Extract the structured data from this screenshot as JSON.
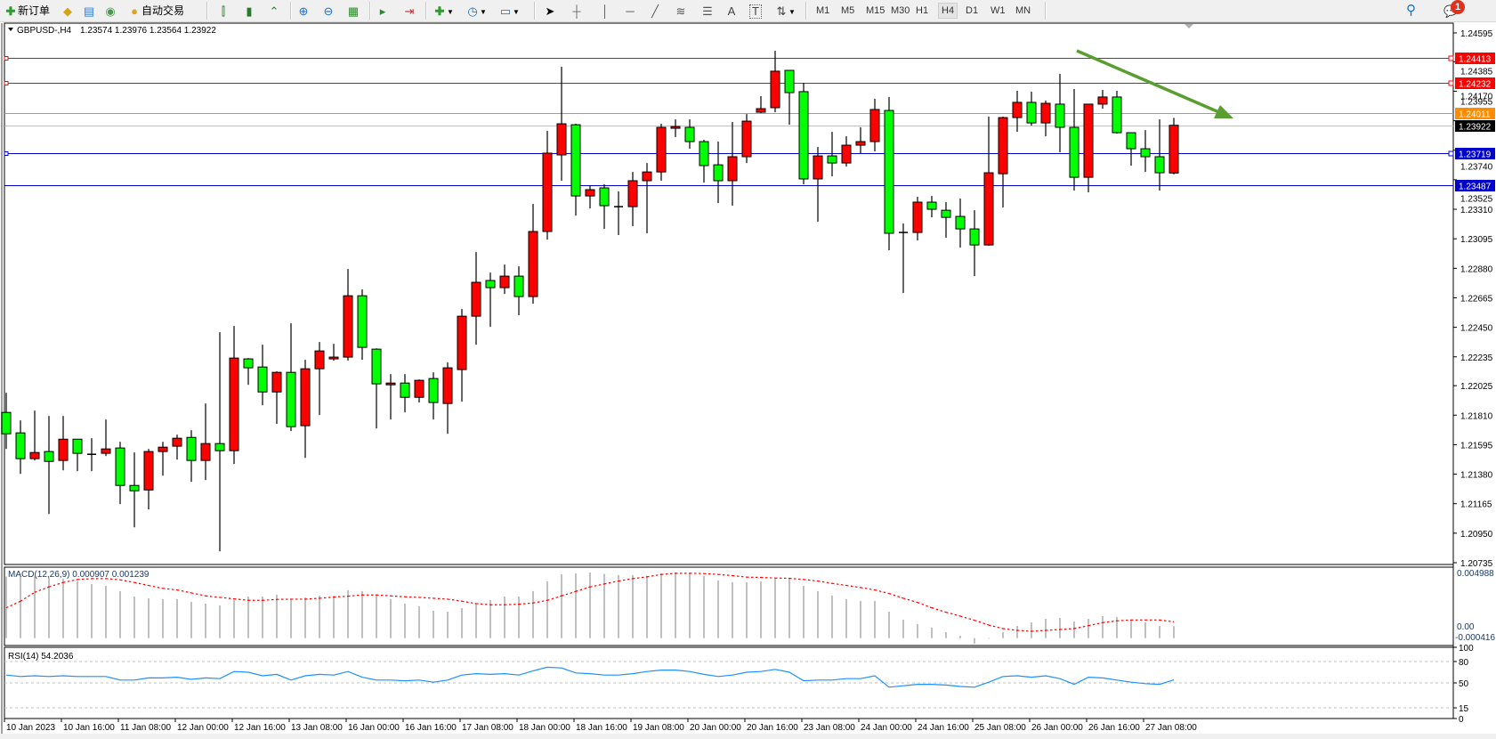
{
  "toolbar": {
    "new_order": "新订单",
    "auto_trading": "自动交易",
    "icons": [
      "new-order-icon",
      "market-watch-icon",
      "navigator-icon",
      "signals-icon",
      "auto-trading-icon",
      "bar-chart-icon",
      "candlestick-icon",
      "line-chart-icon",
      "zoom-in-icon",
      "zoom-out-icon",
      "tile-windows-icon",
      "autoscroll-icon",
      "chart-shift-icon",
      "new-chart-icon",
      "periods-clock-icon",
      "templates-icon",
      "cursor-icon",
      "crosshair-icon",
      "vertical-line-icon",
      "horizontal-line-icon",
      "trendline-icon",
      "fibonacci-icon",
      "equidistant-channel-icon",
      "text-icon",
      "text-label-icon",
      "arrows-icon",
      "search-icon",
      "notifications-icon"
    ],
    "text_tool": "A",
    "label_tool": "T",
    "timeframes": [
      "M1",
      "M5",
      "M15",
      "M30",
      "H1",
      "H4",
      "D1",
      "W1",
      "MN"
    ],
    "active_timeframe": "H4",
    "notification_count": "1"
  },
  "chart": {
    "symbol": "GBPUSD-,H4",
    "ohlc": "1.23574 1.23976 1.23564 1.23922",
    "bull_color": "#ff0000",
    "bear_color": "#00ff00",
    "price_levels": [
      {
        "value": 1.24413,
        "label": "1.24413",
        "color": "#ff0000",
        "marker": true
      },
      {
        "value": 1.24232,
        "label": "1.24232",
        "color": "#ff0000",
        "marker": true
      },
      {
        "value": 1.24011,
        "label": "1.24011",
        "color": "#ff8c00",
        "marker": false
      },
      {
        "value": 1.23922,
        "label": "1.23922",
        "color": "#c0c0c0",
        "box_color": "#000000",
        "marker": false
      },
      {
        "value": 1.23719,
        "label": "1.23719",
        "color": "#0000cc",
        "marker": true
      },
      {
        "value": 1.23487,
        "label": "1.23487",
        "color": "#0000cc",
        "marker": false
      }
    ],
    "trend_arrow_color": "#5a9e2f"
  },
  "chart_data": [
    {
      "type": "candlestick",
      "title": "GBPUSD-,H4",
      "ylim": [
        1.20722,
        1.24666
      ],
      "yticks": [
        "1.24595",
        "1.24385",
        "1.24170",
        "1.23955",
        "1.23740",
        "1.23525",
        "1.23310",
        "1.23095",
        "1.22880",
        "1.22665",
        "1.22450",
        "1.22235",
        "1.22025",
        "1.21810",
        "1.21595",
        "1.21380",
        "1.21165",
        "1.20950",
        "1.20735"
      ],
      "xtick_labels": [
        "10 Jan 2023",
        "10 Jan 16:00",
        "11 Jan 08:00",
        "12 Jan 00:00",
        "12 Jan 16:00",
        "13 Jan 08:00",
        "16 Jan 00:00",
        "16 Jan 16:00",
        "17 Jan 08:00",
        "18 Jan 00:00",
        "18 Jan 16:00",
        "19 Jan 08:00",
        "20 Jan 00:00",
        "20 Jan 16:00",
        "23 Jan 08:00",
        "24 Jan 00:00",
        "24 Jan 16:00",
        "25 Jan 08:00",
        "26 Jan 00:00",
        "26 Jan 16:00",
        "27 Jan 08:00"
      ],
      "xtick_every_bars": 4,
      "ohlc_fields": [
        "open",
        "high",
        "low",
        "close"
      ],
      "candles": [
        [
          1.2183,
          1.21973,
          1.21564,
          1.21674
        ],
        [
          1.21681,
          1.21772,
          1.21382,
          1.21493
        ],
        [
          1.21493,
          1.21843,
          1.2148,
          1.21538
        ],
        [
          1.21545,
          1.21804,
          1.2109,
          1.21473
        ],
        [
          1.2148,
          1.21804,
          1.21408,
          1.21635
        ],
        [
          1.21635,
          1.21635,
          1.21402,
          1.21532
        ],
        [
          1.21525,
          1.21642,
          1.21402,
          1.21525
        ],
        [
          1.21532,
          1.21778,
          1.21512,
          1.21564
        ],
        [
          1.21571,
          1.21616,
          1.21162,
          1.21298
        ],
        [
          1.21298,
          1.21538,
          1.20993,
          1.21259
        ],
        [
          1.21265,
          1.21564,
          1.21123,
          1.21545
        ],
        [
          1.21545,
          1.21616,
          1.21369,
          1.21577
        ],
        [
          1.21584,
          1.21668,
          1.21486,
          1.21642
        ],
        [
          1.21648,
          1.217,
          1.21324,
          1.2148
        ],
        [
          1.2148,
          1.21895,
          1.21337,
          1.21603
        ],
        [
          1.21603,
          1.22414,
          1.20818,
          1.21551
        ],
        [
          1.21551,
          1.2246,
          1.21454,
          1.22226
        ],
        [
          1.2222,
          1.22226,
          1.22031,
          1.22155
        ],
        [
          1.22161,
          1.22323,
          1.21882,
          1.21979
        ],
        [
          1.21979,
          1.22129,
          1.21746,
          1.22122
        ],
        [
          1.22122,
          1.22479,
          1.21694,
          1.21726
        ],
        [
          1.21733,
          1.22213,
          1.21499,
          1.22148
        ],
        [
          1.22148,
          1.22343,
          1.21811,
          1.22278
        ],
        [
          1.2222,
          1.2233,
          1.22207,
          1.22233
        ],
        [
          1.22233,
          1.22875,
          1.22207,
          1.2268
        ],
        [
          1.2268,
          1.22726,
          1.22213,
          1.22304
        ],
        [
          1.22291,
          1.22297,
          1.21713,
          1.22038
        ],
        [
          1.22031,
          1.22109,
          1.21778,
          1.22044
        ],
        [
          1.22044,
          1.22109,
          1.2183,
          1.2194
        ],
        [
          1.2194,
          1.2207,
          1.21902,
          1.22064
        ],
        [
          1.22077,
          1.22122,
          1.21778,
          1.21902
        ],
        [
          1.21895,
          1.22194,
          1.21674,
          1.22155
        ],
        [
          1.22142,
          1.22583,
          1.21908,
          1.22531
        ],
        [
          1.22531,
          1.22998,
          1.22323,
          1.22778
        ],
        [
          1.22791,
          1.22849,
          1.22453,
          1.22739
        ],
        [
          1.22739,
          1.22907,
          1.22693,
          1.22823
        ],
        [
          1.22823,
          1.22894,
          1.22538,
          1.22674
        ],
        [
          1.22674,
          1.23349,
          1.22622,
          1.23148
        ],
        [
          1.23148,
          1.23881,
          1.23089,
          1.23719
        ],
        [
          1.23706,
          1.24348,
          1.23518,
          1.23933
        ],
        [
          1.23926,
          1.23933,
          1.23264,
          1.23407
        ],
        [
          1.23407,
          1.23485,
          1.23316,
          1.23453
        ],
        [
          1.23466,
          1.23492,
          1.23167,
          1.23336
        ],
        [
          1.23329,
          1.2344,
          1.23122,
          1.23329
        ],
        [
          1.23329,
          1.23582,
          1.23187,
          1.23518
        ],
        [
          1.23518,
          1.23647,
          1.23135,
          1.23582
        ],
        [
          1.23582,
          1.23933,
          1.23518,
          1.23907
        ],
        [
          1.239,
          1.23965,
          1.23836,
          1.23913
        ],
        [
          1.23907,
          1.23965,
          1.23751,
          1.23803
        ],
        [
          1.23803,
          1.23816,
          1.23505,
          1.23628
        ],
        [
          1.23634,
          1.23803,
          1.23355,
          1.23518
        ],
        [
          1.23518,
          1.23946,
          1.23336,
          1.23693
        ],
        [
          1.23693,
          1.24004,
          1.23647,
          1.23952
        ],
        [
          1.24017,
          1.24134,
          1.24011,
          1.24043
        ],
        [
          1.2405,
          1.24465,
          1.24017,
          1.24316
        ],
        [
          1.24322,
          1.24322,
          1.23926,
          1.2416
        ],
        [
          1.24167,
          1.24231,
          1.23492,
          1.23531
        ],
        [
          1.23531,
          1.23764,
          1.23219,
          1.23699
        ],
        [
          1.23699,
          1.23874,
          1.2355,
          1.23647
        ],
        [
          1.23647,
          1.23842,
          1.23621,
          1.23777
        ],
        [
          1.23777,
          1.23907,
          1.23719,
          1.23803
        ],
        [
          1.23803,
          1.24115,
          1.23732,
          1.24037
        ],
        [
          1.2403,
          1.24128,
          1.23011,
          1.23135
        ],
        [
          1.23141,
          1.23206,
          1.227,
          1.23141
        ],
        [
          1.23141,
          1.23401,
          1.23083,
          1.23362
        ],
        [
          1.23362,
          1.23407,
          1.23251,
          1.2331
        ],
        [
          1.23303,
          1.23362,
          1.23102,
          1.23251
        ],
        [
          1.23258,
          1.23388,
          1.23031,
          1.23167
        ],
        [
          1.23167,
          1.23303,
          1.22823,
          1.2305
        ],
        [
          1.2305,
          1.23985,
          1.23044,
          1.23576
        ],
        [
          1.23569,
          1.23985,
          1.23323,
          1.23978
        ],
        [
          1.23978,
          1.24173,
          1.23874,
          1.24089
        ],
        [
          1.24089,
          1.24167,
          1.2392,
          1.23939
        ],
        [
          1.23939,
          1.24102,
          1.23842,
          1.24082
        ],
        [
          1.24076,
          1.24296,
          1.23725,
          1.23907
        ],
        [
          1.23907,
          1.24186,
          1.23446,
          1.23543
        ],
        [
          1.23543,
          1.24076,
          1.23433,
          1.24076
        ],
        [
          1.24076,
          1.2418,
          1.24043,
          1.24128
        ],
        [
          1.24128,
          1.24173,
          1.23861,
          1.23868
        ],
        [
          1.23868,
          1.23868,
          1.23628,
          1.23751
        ],
        [
          1.23751,
          1.23887,
          1.23582,
          1.23693
        ],
        [
          1.23693,
          1.23965,
          1.23446,
          1.23576
        ],
        [
          1.23574,
          1.23976,
          1.23564,
          1.23922
        ]
      ]
    },
    {
      "type": "bar",
      "title": "MACD(12,26,9) 0.000907 0.001239",
      "ylim": [
        -0.00056,
        0.00539
      ],
      "max_label": "0.004988",
      "zero_label": "0.00",
      "min_label": "-0.000416",
      "histogram_color": "#c0c0c0",
      "signal_color": "#ff0000",
      "macd": [
        0.004678,
        0.004678,
        0.004678,
        0.00461,
        0.00452,
        0.004339,
        0.004113,
        0.003978,
        0.003571,
        0.003164,
        0.003028,
        0.002961,
        0.002961,
        0.002757,
        0.002622,
        0.002486,
        0.002893,
        0.003164,
        0.003164,
        0.0033,
        0.002961,
        0.003096,
        0.003232,
        0.003232,
        0.003639,
        0.003571,
        0.003232,
        0.002961,
        0.002622,
        0.002418,
        0.002079,
        0.002011,
        0.002283,
        0.002622,
        0.002893,
        0.003164,
        0.003164,
        0.003571,
        0.004317,
        0.00485,
        0.00492,
        0.004988,
        0.00488,
        0.004791,
        0.004791,
        0.004723,
        0.004927,
        0.004988,
        0.00495,
        0.004723,
        0.004384,
        0.004249,
        0.004249,
        0.004317,
        0.00452,
        0.00452,
        0.003978,
        0.003571,
        0.003232,
        0.002961,
        0.002825,
        0.002825,
        0.002011,
        0.001401,
        0.001062,
        0.000791,
        0.000452,
        0.000181,
        -0.000416,
        -4.5e-05,
        0.000452,
        0.000927,
        0.001198,
        0.001469,
        0.001537,
        0.001266,
        0.001469,
        0.001672,
        0.001605,
        0.001401,
        0.001198,
        0.000927,
        0.000907
      ],
      "signal": [
        0.002305,
        0.002802,
        0.00348,
        0.003887,
        0.004226,
        0.004452,
        0.00452,
        0.00452,
        0.00443,
        0.004226,
        0.004,
        0.003774,
        0.003661,
        0.003435,
        0.003209,
        0.003096,
        0.002983,
        0.00287,
        0.00287,
        0.002938,
        0.002961,
        0.002961,
        0.003028,
        0.003119,
        0.003187,
        0.003277,
        0.003277,
        0.003209,
        0.003141,
        0.003096,
        0.003028,
        0.002961,
        0.002802,
        0.002622,
        0.002531,
        0.002531,
        0.002576,
        0.002667,
        0.00287,
        0.003209,
        0.003548,
        0.003887,
        0.004113,
        0.004339,
        0.00452,
        0.004656,
        0.004836,
        0.004927,
        0.004927,
        0.004904,
        0.004836,
        0.004746,
        0.004633,
        0.00461,
        0.004565,
        0.004543,
        0.004452,
        0.004339,
        0.004158,
        0.004,
        0.003842,
        0.003661,
        0.00339,
        0.003028,
        0.002712,
        0.002305,
        0.001966,
        0.001672,
        0.001356,
        0.000994,
        0.000723,
        0.000588,
        0.00052,
        0.000588,
        0.000655,
        0.000723,
        0.000949,
        0.001175,
        0.001311,
        0.001379,
        0.001379,
        0.001379,
        0.001239
      ]
    },
    {
      "type": "line",
      "title": "RSI(14) 54.2036",
      "ylim": [
        0,
        100
      ],
      "yticks": [
        "100",
        "80",
        "50",
        "15",
        "0"
      ],
      "levels": [
        80,
        50,
        15
      ],
      "color": "#1e90ff",
      "values": [
        61,
        59,
        60,
        59,
        60,
        59,
        59,
        59,
        54,
        54,
        57,
        57,
        58,
        55,
        57,
        56,
        66,
        65,
        60,
        62,
        54,
        60,
        62,
        61,
        66,
        58,
        54,
        54,
        53,
        54,
        51,
        54,
        61,
        63,
        62,
        63,
        61,
        67,
        72,
        71,
        64,
        63,
        61,
        61,
        63,
        66,
        68,
        68,
        66,
        62,
        59,
        61,
        65,
        66,
        69,
        65,
        53,
        54,
        54,
        56,
        56,
        60,
        44,
        46,
        48,
        48,
        47,
        45,
        44,
        51,
        59,
        60,
        58,
        60,
        56,
        48,
        58,
        57,
        54,
        51,
        49,
        48,
        54.2
      ]
    }
  ]
}
